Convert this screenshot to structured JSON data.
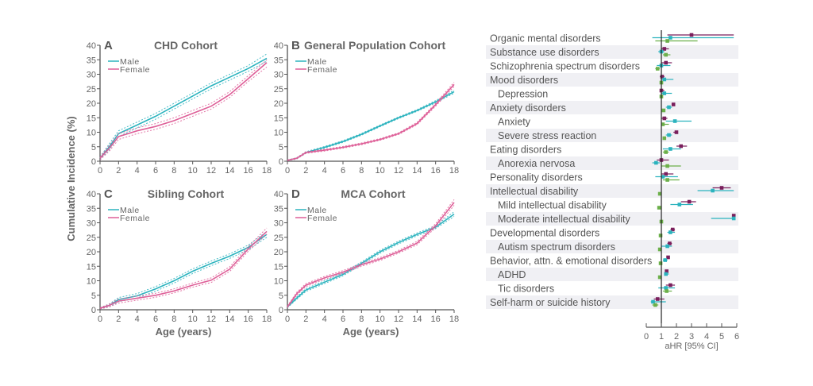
{
  "colors": {
    "male": "#2bb3be",
    "female": "#de5f98",
    "forest_a": "#7a1f5c",
    "forest_b": "#2bb3be",
    "forest_c": "#6cb04a",
    "row_shade": "#f0f0f4"
  },
  "chart_data": [
    {
      "type": "line",
      "panel": "A",
      "title": "CHD Cohort",
      "xlabel": "",
      "ylabel": "Cumulative Incidence (%)",
      "xlim": [
        0,
        18
      ],
      "ylim": [
        0,
        40
      ],
      "xticks": [
        0,
        2,
        4,
        6,
        8,
        10,
        12,
        14,
        16,
        18
      ],
      "yticks": [
        0,
        5,
        10,
        15,
        20,
        25,
        30,
        35,
        40
      ],
      "legend": "top-left",
      "x": [
        0,
        1,
        2,
        4,
        6,
        8,
        10,
        12,
        14,
        16,
        18
      ],
      "series": [
        {
          "name": "Male",
          "values": [
            1,
            5,
            9.5,
            12.5,
            15.5,
            19,
            22.5,
            26,
            29,
            32,
            35.5
          ],
          "ci_lower": [
            0.5,
            4,
            8.5,
            11.5,
            14.5,
            18,
            21.5,
            25,
            28,
            31,
            34.5
          ],
          "ci_upper": [
            1.5,
            6,
            10.5,
            13.5,
            16.5,
            20,
            23.5,
            27,
            30,
            33,
            37
          ]
        },
        {
          "name": "Female",
          "values": [
            1,
            4.5,
            8.5,
            10.5,
            12,
            14,
            16.5,
            19,
            23,
            28.5,
            34
          ],
          "ci_lower": [
            0.5,
            3.5,
            7.5,
            9.5,
            11,
            13,
            15.5,
            18,
            22,
            27.5,
            32.5
          ],
          "ci_upper": [
            1.5,
            5.5,
            9.5,
            11.5,
            13,
            15,
            17.5,
            20,
            24,
            29.5,
            35
          ]
        }
      ]
    },
    {
      "type": "line",
      "panel": "B",
      "title": "General Population Cohort",
      "xlabel": "",
      "ylabel": "",
      "xlim": [
        0,
        18
      ],
      "ylim": [
        0,
        40
      ],
      "xticks": [
        0,
        2,
        4,
        6,
        8,
        10,
        12,
        14,
        16,
        18
      ],
      "yticks": [
        0,
        5,
        10,
        15,
        20,
        25,
        30,
        35,
        40
      ],
      "legend": "top-left",
      "x": [
        0,
        1,
        2,
        4,
        6,
        8,
        10,
        12,
        14,
        16,
        18
      ],
      "series": [
        {
          "name": "Male",
          "values": [
            0.3,
            1,
            3,
            4.8,
            6.8,
            9.3,
            12.2,
            15,
            17.5,
            20.5,
            24
          ],
          "ci_lower": [
            0.2,
            0.8,
            2.7,
            4.5,
            6.5,
            9,
            11.9,
            14.7,
            17.2,
            20.1,
            23.5
          ],
          "ci_upper": [
            0.4,
            1.2,
            3.3,
            5.1,
            7.1,
            9.6,
            12.5,
            15.3,
            17.8,
            20.9,
            24.5
          ]
        },
        {
          "name": "Female",
          "values": [
            0.3,
            1,
            3,
            3.8,
            4.8,
            6,
            7.5,
            9.5,
            13,
            19.5,
            26.5
          ],
          "ci_lower": [
            0.2,
            0.8,
            2.7,
            3.5,
            4.5,
            5.7,
            7.2,
            9.2,
            12.6,
            19,
            25.8
          ],
          "ci_upper": [
            0.4,
            1.2,
            3.3,
            4.1,
            5.1,
            6.3,
            7.8,
            9.8,
            13.4,
            20,
            27.2
          ]
        }
      ]
    },
    {
      "type": "line",
      "panel": "C",
      "title": "Sibling Cohort",
      "xlabel": "Age (years)",
      "ylabel": "",
      "xlim": [
        0,
        18
      ],
      "ylim": [
        0,
        40
      ],
      "xticks": [
        0,
        2,
        4,
        6,
        8,
        10,
        12,
        14,
        16,
        18
      ],
      "yticks": [
        0,
        5,
        10,
        15,
        20,
        25,
        30,
        35,
        40
      ],
      "legend": "top-left",
      "x": [
        0,
        1,
        2,
        4,
        6,
        8,
        10,
        12,
        14,
        16,
        18
      ],
      "series": [
        {
          "name": "Male",
          "values": [
            0.5,
            1.5,
            3.5,
            4.8,
            7.2,
            10,
            13.3,
            16,
            18.5,
            21.5,
            26
          ],
          "ci_lower": [
            0.3,
            1,
            2.8,
            4,
            6.4,
            9.2,
            12.5,
            15.2,
            17.7,
            20.7,
            25
          ],
          "ci_upper": [
            0.7,
            2,
            4.2,
            5.6,
            8,
            10.8,
            14.1,
            16.8,
            19.3,
            22.3,
            27
          ]
        },
        {
          "name": "Female",
          "values": [
            0.5,
            1.5,
            3,
            4,
            5,
            6.5,
            8.5,
            10.2,
            14,
            21,
            27
          ],
          "ci_lower": [
            0.3,
            1,
            2.3,
            3.3,
            4.3,
            5.8,
            7.8,
            9.4,
            13.2,
            20.2,
            26
          ],
          "ci_upper": [
            0.7,
            2,
            3.7,
            4.7,
            5.7,
            7.2,
            9.2,
            11,
            14.8,
            21.8,
            28.2
          ]
        }
      ]
    },
    {
      "type": "line",
      "panel": "D",
      "title": "MCA Cohort",
      "xlabel": "Age (years)",
      "ylabel": "",
      "xlim": [
        0,
        18
      ],
      "ylim": [
        0,
        40
      ],
      "xticks": [
        0,
        2,
        4,
        6,
        8,
        10,
        12,
        14,
        16,
        18
      ],
      "yticks": [
        0,
        5,
        10,
        15,
        20,
        25,
        30,
        35,
        40
      ],
      "legend": "top-left",
      "x": [
        0,
        1,
        2,
        4,
        6,
        8,
        10,
        12,
        14,
        16,
        18
      ],
      "series": [
        {
          "name": "Male",
          "values": [
            1,
            4,
            6.8,
            9.5,
            12.2,
            16,
            20,
            23.2,
            26,
            28.5,
            33
          ],
          "ci_lower": [
            0.7,
            3.6,
            6.3,
            9,
            11.7,
            15.5,
            19.5,
            22.7,
            25.5,
            28,
            32.2
          ],
          "ci_upper": [
            1.3,
            4.4,
            7.3,
            10,
            12.7,
            16.5,
            20.5,
            23.7,
            26.5,
            29,
            33.8
          ]
        },
        {
          "name": "Female",
          "values": [
            1,
            5.5,
            8.5,
            11,
            13,
            15.5,
            17.5,
            20,
            23,
            29,
            37
          ],
          "ci_lower": [
            0.7,
            5,
            8,
            10.5,
            12.5,
            15,
            17,
            19.5,
            22.4,
            28.3,
            36
          ],
          "ci_upper": [
            1.3,
            6,
            9,
            11.5,
            13.5,
            16,
            18,
            20.5,
            23.6,
            29.7,
            38
          ]
        }
      ]
    },
    {
      "type": "forest",
      "xlabel": "aHR [95% CI]",
      "xlim": [
        0,
        6
      ],
      "xticks": [
        0,
        1,
        2,
        3,
        4,
        5,
        6
      ],
      "reference_line": 1,
      "rows": [
        {
          "label": "Organic mental disorders",
          "indent": false,
          "estimates": [
            [
              3.0,
              1.4,
              5.8
            ],
            [
              1.6,
              0.4,
              5.8
            ],
            [
              1.4,
              0.6,
              3.4
            ]
          ]
        },
        {
          "label": "Substance use disorders",
          "indent": false,
          "estimates": [
            [
              1.2,
              1.0,
              1.5
            ],
            [
              1.0,
              0.8,
              1.2
            ],
            [
              1.3,
              1.1,
              1.6
            ]
          ]
        },
        {
          "label": "Schizophrenia spectrum disorders",
          "indent": false,
          "estimates": [
            [
              1.3,
              1.0,
              1.7
            ],
            [
              1.0,
              0.7,
              1.6
            ],
            [
              0.75,
              0.6,
              0.9
            ]
          ]
        },
        {
          "label": "Mood disorders",
          "indent": false,
          "estimates": [
            [
              1.05,
              0.9,
              1.2
            ],
            [
              1.2,
              1.0,
              1.8
            ],
            [
              1.0,
              0.9,
              1.1
            ]
          ]
        },
        {
          "label": "Depression",
          "indent": true,
          "estimates": [
            [
              1.0,
              0.9,
              1.2
            ],
            [
              1.2,
              1.0,
              1.7
            ],
            [
              1.0,
              0.9,
              1.1
            ]
          ]
        },
        {
          "label": "Anxiety disorders",
          "indent": false,
          "estimates": [
            [
              1.8,
              1.7,
              1.9
            ],
            [
              1.5,
              1.3,
              1.7
            ],
            [
              1.15,
              1.1,
              1.2
            ]
          ]
        },
        {
          "label": "Anxiety",
          "indent": true,
          "estimates": [
            [
              1.2,
              1.0,
              1.4
            ],
            [
              1.9,
              1.3,
              3.0
            ],
            [
              1.1,
              1.0,
              1.5
            ]
          ]
        },
        {
          "label": "Severe stress reaction",
          "indent": true,
          "estimates": [
            [
              2.0,
              1.8,
              2.1
            ],
            [
              1.5,
              1.3,
              1.7
            ],
            [
              1.2,
              1.1,
              1.3
            ]
          ]
        },
        {
          "label": "Eating disorders",
          "indent": false,
          "estimates": [
            [
              2.3,
              2.0,
              2.7
            ],
            [
              1.6,
              1.1,
              2.3
            ],
            [
              1.3,
              1.1,
              1.5
            ]
          ]
        },
        {
          "label": "Anorexia nervosa",
          "indent": true,
          "estimates": [
            [
              1.0,
              0.7,
              1.5
            ],
            [
              0.65,
              0.4,
              0.9
            ],
            [
              1.4,
              1.0,
              2.3
            ]
          ]
        },
        {
          "label": "Personality disorders",
          "indent": false,
          "estimates": [
            [
              1.3,
              1.0,
              1.8
            ],
            [
              1.1,
              0.6,
              2.1
            ],
            [
              1.4,
              1.1,
              2.2
            ]
          ]
        },
        {
          "label": "Intellectual disability",
          "indent": false,
          "estimates": [
            [
              5.0,
              4.4,
              5.6
            ],
            [
              4.4,
              3.4,
              5.8
            ],
            [
              0.9,
              0.85,
              0.95
            ]
          ]
        },
        {
          "label": "Mild intellectual disability",
          "indent": true,
          "estimates": [
            [
              2.85,
              2.3,
              3.3
            ],
            [
              2.2,
              1.6,
              3.1
            ],
            [
              0.85,
              0.8,
              0.9
            ]
          ]
        },
        {
          "label": "Moderate intellectual disability",
          "indent": true,
          "estimates": [
            [
              5.8,
              5.7,
              5.9
            ],
            [
              5.8,
              4.3,
              5.8
            ],
            [
              1.0,
              0.9,
              1.1
            ]
          ]
        },
        {
          "label": "Developmental disorders",
          "indent": false,
          "estimates": [
            [
              1.75,
              1.6,
              1.9
            ],
            [
              1.6,
              1.4,
              1.9
            ],
            [
              0.95,
              0.9,
              1.0
            ]
          ]
        },
        {
          "label": "Autism spectrum disorders",
          "indent": true,
          "estimates": [
            [
              1.55,
              1.4,
              1.7
            ],
            [
              1.4,
              1.0,
              1.7
            ],
            [
              0.9,
              0.85,
              0.95
            ]
          ]
        },
        {
          "label": "Behavior, attn. & emotional disorders",
          "indent": false,
          "estimates": [
            [
              1.45,
              1.4,
              1.5
            ],
            [
              1.25,
              1.1,
              1.4
            ],
            [
              0.95,
              0.9,
              1.0
            ]
          ]
        },
        {
          "label": "ADHD",
          "indent": true,
          "estimates": [
            [
              1.35,
              1.25,
              1.45
            ],
            [
              1.3,
              1.2,
              1.5
            ],
            [
              0.9,
              0.85,
              0.95
            ]
          ]
        },
        {
          "label": "Tic disorders",
          "indent": true,
          "estimates": [
            [
              1.6,
              1.3,
              1.9
            ],
            [
              1.3,
              0.8,
              1.9
            ],
            [
              1.35,
              1.1,
              1.7
            ]
          ]
        },
        {
          "label": "Self-harm or suicide history",
          "indent": false,
          "estimates": [
            [
              0.75,
              0.5,
              1.2
            ],
            [
              0.45,
              0.3,
              1.3
            ],
            [
              0.6,
              0.4,
              0.8
            ]
          ]
        }
      ]
    }
  ]
}
